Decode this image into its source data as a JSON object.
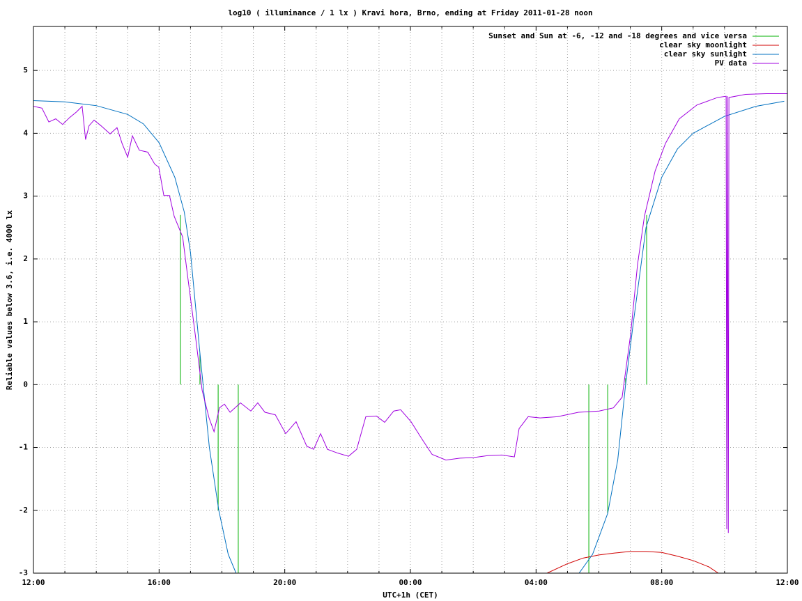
{
  "chart_data": {
    "type": "line",
    "title": "log10 ( illuminance / 1 lx ) Kravi hora, Brno, ending at Friday 2011-01-28 noon",
    "xlabel": "UTC+1h (CET)",
    "ylabel": "Reliable values below 3.6, i.e. 4000 lx",
    "xlim": [
      12,
      36
    ],
    "xticks": [
      {
        "value": 12,
        "label": "12:00"
      },
      {
        "value": 16,
        "label": "16:00"
      },
      {
        "value": 20,
        "label": "20:00"
      },
      {
        "value": 24,
        "label": "00:00"
      },
      {
        "value": 28,
        "label": "04:00"
      },
      {
        "value": 32,
        "label": "08:00"
      },
      {
        "value": 36,
        "label": "12:00"
      }
    ],
    "xminorticks": [
      13,
      14,
      15,
      17,
      18,
      19,
      21,
      22,
      23,
      25,
      26,
      27,
      29,
      30,
      31,
      33,
      34,
      35
    ],
    "ylim": [
      -3,
      5.7
    ],
    "yticks": [
      -3,
      -2,
      -1,
      0,
      1,
      2,
      3,
      4,
      5
    ],
    "grid": true,
    "legend": "top right",
    "series": [
      {
        "name": "Sunset and Sun at -6, -12 and -18 degrees and vice versa",
        "color": "#00b000",
        "x": [
          16.68,
          16.68,
          null,
          17.3,
          17.3,
          null,
          17.88,
          17.88,
          null,
          18.52,
          18.52,
          null,
          29.68,
          29.68,
          null,
          30.28,
          30.28,
          null,
          30.85,
          30.85,
          null,
          31.52,
          31.52
        ],
        "values": [
          0,
          2.7,
          null,
          0,
          0.5,
          null,
          0,
          -2.0,
          null,
          0,
          -3,
          null,
          0,
          -3,
          null,
          0,
          -2.05,
          null,
          0,
          0.1,
          null,
          0,
          2.7
        ]
      },
      {
        "name": "clear sky moonlight",
        "color": "#d00000",
        "x": [
          28.35,
          29,
          29.5,
          30,
          30.5,
          31,
          31.5,
          32,
          32.5,
          33,
          33.5,
          33.8
        ],
        "values": [
          -3,
          -2.85,
          -2.76,
          -2.71,
          -2.68,
          -2.655,
          -2.655,
          -2.67,
          -2.73,
          -2.8,
          -2.9,
          -3
        ]
      },
      {
        "name": "clear sky sunlight",
        "color": "#0070c0",
        "x": [
          12,
          13,
          14,
          15,
          15.5,
          16,
          16.5,
          16.8,
          17,
          17.3,
          17.6,
          17.9,
          18.2,
          18.45,
          null,
          29.37,
          29.8,
          30.28,
          30.6,
          30.85,
          31.1,
          31.5,
          32,
          32.5,
          33,
          34,
          35,
          35.9
        ],
        "values": [
          4.52,
          4.5,
          4.44,
          4.3,
          4.15,
          3.85,
          3.3,
          2.75,
          2.1,
          0.5,
          -1.0,
          -2.0,
          -2.7,
          -3,
          null,
          -3,
          -2.7,
          -2.05,
          -1.2,
          0,
          1.0,
          2.5,
          3.3,
          3.75,
          4.0,
          4.27,
          4.43,
          4.51
        ]
      },
      {
        "name": "PV data",
        "color": "#a000e0",
        "x": [
          12,
          12.27,
          12.49,
          12.71,
          12.93,
          13.15,
          13.37,
          13.55,
          13.66,
          13.77,
          13.93,
          14.15,
          14.44,
          14.66,
          14.82,
          15.0,
          15.15,
          15.37,
          15.64,
          15.86,
          15.99,
          16.15,
          16.33,
          16.48,
          16.75,
          16.92,
          17.15,
          17.37,
          17.59,
          17.75,
          17.92,
          18.08,
          18.26,
          18.59,
          18.92,
          19.14,
          19.37,
          19.7,
          20.03,
          20.36,
          20.7,
          20.92,
          21.14,
          21.36,
          21.69,
          22.03,
          22.29,
          22.58,
          22.92,
          23.18,
          23.47,
          23.69,
          24.02,
          24.36,
          24.69,
          25.13,
          25.58,
          26.02,
          26.46,
          26.91,
          27.31,
          27.46,
          27.75,
          28.13,
          28.68,
          29.35,
          30.01,
          30.46,
          30.74,
          31.01,
          31.23,
          31.45,
          31.79,
          32.12,
          32.56,
          33.12,
          33.78,
          34.05,
          34.07,
          34.09,
          34.12,
          34.14,
          34.67,
          35.33,
          36
        ],
        "values": [
          4.43,
          4.4,
          4.18,
          4.23,
          4.14,
          4.25,
          4.34,
          4.43,
          3.9,
          4.12,
          4.21,
          4.12,
          3.99,
          4.09,
          3.84,
          3.62,
          3.96,
          3.73,
          3.7,
          3.51,
          3.46,
          3.01,
          3.01,
          2.68,
          2.35,
          1.68,
          0.8,
          -0.09,
          -0.53,
          -0.75,
          -0.37,
          -0.31,
          -0.44,
          -0.29,
          -0.42,
          -0.29,
          -0.44,
          -0.48,
          -0.78,
          -0.59,
          -0.98,
          -1.03,
          -0.78,
          -1.03,
          -1.09,
          -1.14,
          -1.03,
          -0.51,
          -0.5,
          -0.6,
          -0.42,
          -0.4,
          -0.59,
          -0.86,
          -1.11,
          -1.2,
          -1.17,
          -1.16,
          -1.13,
          -1.12,
          -1.15,
          -0.7,
          -0.51,
          -0.53,
          -0.51,
          -0.44,
          -0.42,
          -0.37,
          -0.2,
          0.8,
          1.91,
          2.68,
          3.4,
          3.84,
          4.23,
          4.45,
          4.57,
          4.59,
          -2.3,
          4.59,
          -2.36,
          4.57,
          4.62,
          4.63,
          4.63
        ]
      }
    ]
  }
}
